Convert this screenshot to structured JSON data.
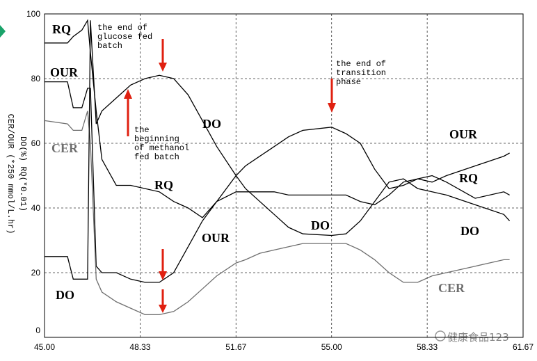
{
  "chart_data": {
    "type": "line",
    "y_label": [
      "DO(%)  RQ(*0.01)",
      "CER/OUR (*250 mmol/L.hr)"
    ],
    "annotations": [
      [
        "the end of",
        "glucose fed",
        "batch"
      ],
      [
        "the",
        "beginning",
        "of methanol",
        "fed batch"
      ],
      [
        "the end of",
        "transition",
        "phase"
      ]
    ],
    "watermark": "健康食品123",
    "x": [
      45,
      45.8,
      46,
      46.3,
      46.5,
      46.6,
      46.8,
      47,
      47.5,
      48,
      48.5,
      49,
      49.5,
      50,
      50.5,
      51,
      51.67,
      52,
      52.5,
      53,
      53.5,
      54,
      55,
      55.5,
      56,
      56.5,
      57,
      57.5,
      58,
      58.5,
      59,
      60,
      61,
      61.2
    ],
    "series": [
      {
        "name": "RQ",
        "color": "#000000",
        "values": [
          91,
          91,
          93,
          95,
          98,
          88,
          70,
          55,
          47,
          47,
          46,
          45,
          42,
          40,
          37,
          42,
          45,
          45,
          45,
          45,
          44,
          44,
          44,
          44,
          42,
          41,
          44,
          48,
          49,
          50,
          48,
          43,
          45,
          44
        ]
      },
      {
        "name": "OUR",
        "color": "#000000",
        "values": [
          79,
          79,
          71,
          71,
          77,
          77,
          22,
          20,
          20,
          18,
          17,
          17,
          20,
          28,
          36,
          42,
          50,
          53,
          56,
          59,
          62,
          64,
          65,
          63,
          60,
          52,
          46,
          47,
          49,
          48,
          50,
          53,
          56,
          57
        ]
      },
      {
        "name": "CER",
        "color": "#6e6e6e",
        "values": [
          67,
          66,
          64,
          64,
          70,
          60,
          18,
          14,
          11,
          9,
          7,
          7,
          8,
          11,
          15,
          19,
          23,
          24,
          26,
          27,
          28,
          29,
          29,
          29,
          27,
          24,
          20,
          17,
          17,
          19,
          20,
          22,
          24,
          24
        ]
      },
      {
        "name": "DO",
        "color": "#000000",
        "values": [
          25,
          25,
          18,
          18,
          18,
          98,
          66,
          70,
          74,
          78,
          80,
          81,
          80,
          75,
          67,
          59,
          50,
          46,
          42,
          38,
          34,
          32,
          31.5,
          32,
          36,
          42,
          48,
          49,
          46,
          45,
          44,
          41,
          38,
          36
        ]
      }
    ],
    "xlim": [
      45,
      61.67
    ],
    "ylim": [
      0,
      100
    ],
    "xticks": [
      {
        "value": 45,
        "label": "45.00"
      },
      48.33,
      51.67,
      {
        "value": 55,
        "label": "55.00"
      },
      58.33,
      61.67
    ],
    "yticks": [
      0,
      20,
      40,
      60,
      80,
      100
    ],
    "grid": true
  }
}
